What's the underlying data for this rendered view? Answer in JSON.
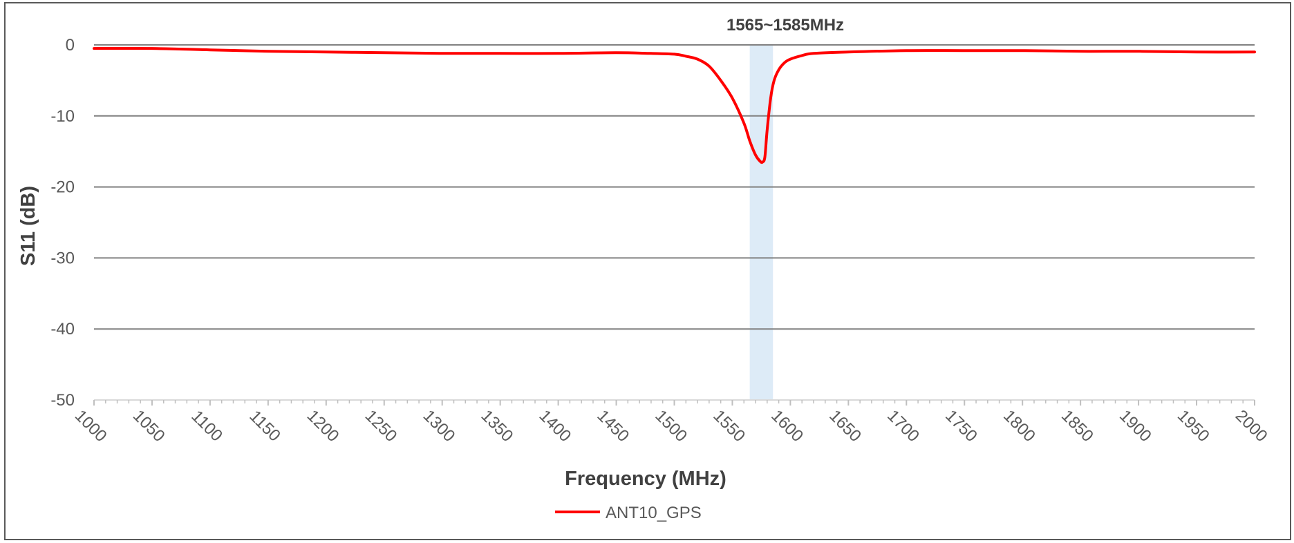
{
  "chart_data": {
    "type": "line",
    "xlabel": "Frequency (MHz)",
    "ylabel": "S11 (dB)",
    "xlim": [
      1000,
      2000
    ],
    "ylim": [
      -50,
      0
    ],
    "x_ticks": [
      1000,
      1050,
      1100,
      1150,
      1200,
      1250,
      1300,
      1350,
      1400,
      1450,
      1500,
      1550,
      1600,
      1650,
      1700,
      1750,
      1800,
      1850,
      1900,
      1950,
      2000
    ],
    "y_ticks": [
      0,
      -10,
      -20,
      -30,
      -40,
      -50
    ],
    "grid": "horizontal",
    "legend_position": "bottom",
    "highlight_band": {
      "label": "1565~1585MHz",
      "range": [
        1565,
        1585
      ],
      "color": "#DDEBF7"
    },
    "series": [
      {
        "name": "ANT10_GPS",
        "color": "#FF0000",
        "x": [
          1000,
          1050,
          1100,
          1150,
          1200,
          1250,
          1300,
          1350,
          1400,
          1450,
          1480,
          1500,
          1510,
          1520,
          1530,
          1540,
          1550,
          1560,
          1565,
          1570,
          1574,
          1576,
          1578,
          1580,
          1583,
          1586,
          1590,
          1595,
          1600,
          1610,
          1620,
          1650,
          1700,
          1750,
          1800,
          1850,
          1900,
          1950,
          2000
        ],
        "y": [
          -0.5,
          -0.5,
          -0.7,
          -0.9,
          -1.0,
          -1.1,
          -1.2,
          -1.2,
          -1.2,
          -1.1,
          -1.2,
          -1.3,
          -1.6,
          -2.0,
          -3.0,
          -5.0,
          -7.5,
          -11.0,
          -13.5,
          -15.5,
          -16.4,
          -16.5,
          -15.8,
          -12.0,
          -7.5,
          -5.0,
          -3.5,
          -2.5,
          -2.0,
          -1.5,
          -1.2,
          -1.0,
          -0.8,
          -0.8,
          -0.8,
          -0.9,
          -0.9,
          -1.0,
          -1.0
        ]
      }
    ]
  }
}
